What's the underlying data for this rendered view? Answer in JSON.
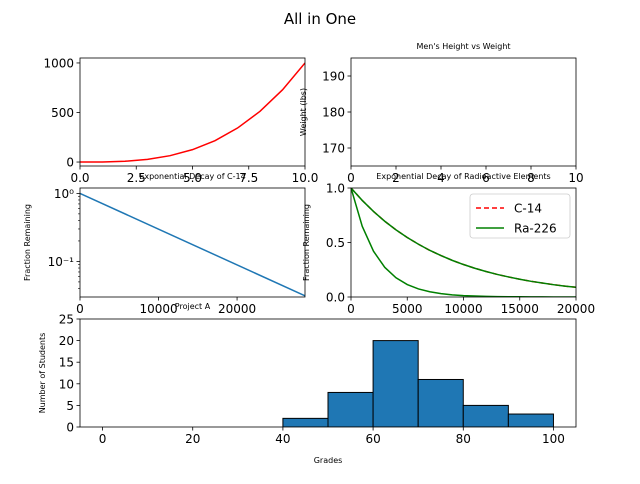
{
  "figure": {
    "title": "All in One"
  },
  "chart_data": [
    {
      "id": "cubic",
      "type": "line",
      "title": "",
      "xlabel": "",
      "ylabel": "",
      "xlim": [
        0,
        10
      ],
      "ylim": [
        -40,
        1050
      ],
      "xticks": [
        0.0,
        2.5,
        5.0,
        7.5,
        10.0
      ],
      "xtick_labels": [
        "0.0",
        "2.5",
        "5.0",
        "7.5",
        "10.0"
      ],
      "yticks": [
        0,
        500,
        1000
      ],
      "ytick_labels": [
        "0",
        "500",
        "1000"
      ],
      "color": "#ff0000",
      "x": [
        0,
        1,
        2,
        3,
        4,
        5,
        6,
        7,
        8,
        9,
        10
      ],
      "y": [
        0,
        1,
        8,
        27,
        64,
        125,
        216,
        343,
        512,
        729,
        1000
      ]
    },
    {
      "id": "height_weight",
      "type": "scatter",
      "title": "Men's Height vs Weight",
      "xlabel": "",
      "ylabel": "Weight (lbs)",
      "xlim": [
        0,
        10
      ],
      "ylim": [
        165,
        195
      ],
      "xticks": [
        0,
        2,
        4,
        6,
        8,
        10
      ],
      "xtick_labels": [
        "0",
        "2",
        "4",
        "6",
        "8",
        "10"
      ],
      "yticks": [
        170,
        180,
        190
      ],
      "ytick_labels": [
        "170",
        "180",
        "190"
      ],
      "points": []
    },
    {
      "id": "decay_c14",
      "type": "line",
      "title": "Exponential Decay of C-14",
      "xlabel": "Project A",
      "ylabel": "Fraction Remaining",
      "yscale": "log",
      "xlim": [
        0,
        28650
      ],
      "ylim": [
        0.03,
        1.2
      ],
      "xticks": [
        0,
        10000,
        20000
      ],
      "xtick_labels": [
        "0",
        "10000",
        "20000"
      ],
      "yticks": [
        0.1,
        1
      ],
      "ytick_labels": [
        "10⁻¹",
        "10⁰"
      ],
      "color": "#1f77b4",
      "x": [
        0,
        28650
      ],
      "y": [
        1.0,
        0.0312
      ]
    },
    {
      "id": "decay_radioactive",
      "type": "line",
      "title": "Exponential Decay of Radioactive Elements",
      "xlabel": "",
      "ylabel": "Fraction Remaining",
      "xlim": [
        0,
        20000
      ],
      "ylim": [
        0,
        1.0
      ],
      "xticks": [
        0,
        5000,
        10000,
        15000,
        20000
      ],
      "xtick_labels": [
        "0",
        "5000",
        "10000",
        "15000",
        "20000"
      ],
      "yticks": [
        0,
        0.5,
        1.0
      ],
      "ytick_labels": [
        "0.0",
        "0.5",
        "1.0"
      ],
      "legend_position": "top-right",
      "series": [
        {
          "name": "C-14",
          "color": "#ff0000",
          "dash": true,
          "x": [
            0,
            1000,
            2000,
            3000,
            4000,
            5000,
            6000,
            7000,
            8000,
            9000,
            10000,
            11000,
            12000,
            13000,
            14000,
            15000,
            16000,
            17000,
            18000,
            19000,
            20000
          ],
          "y": [
            1.0,
            0.886,
            0.785,
            0.695,
            0.616,
            0.546,
            0.484,
            0.428,
            0.38,
            0.336,
            0.298,
            0.264,
            0.234,
            0.207,
            0.184,
            0.163,
            0.144,
            0.128,
            0.113,
            0.1,
            0.089
          ]
        },
        {
          "name": "Ra-226",
          "color": "#008000",
          "dash": false,
          "x": [
            0,
            1000,
            2000,
            3000,
            4000,
            5000,
            6000,
            7000,
            8000,
            9000,
            10000,
            11000,
            12000,
            13000,
            14000,
            15000,
            16000,
            17000,
            18000,
            19000,
            20000
          ],
          "y": [
            1.0,
            0.886,
            0.785,
            0.695,
            0.616,
            0.546,
            0.484,
            0.428,
            0.38,
            0.336,
            0.298,
            0.264,
            0.234,
            0.207,
            0.184,
            0.163,
            0.144,
            0.128,
            0.113,
            0.1,
            0.089
          ]
        },
        {
          "name": "",
          "color": "#008000",
          "dash": false,
          "x": [
            0,
            1000,
            2000,
            3000,
            4000,
            5000,
            6000,
            7000,
            8000,
            9000,
            10000,
            11000,
            12000,
            13000,
            14000,
            15000,
            16000,
            17000,
            18000,
            19000,
            20000
          ],
          "y": [
            1.0,
            0.648,
            0.42,
            0.272,
            0.176,
            0.114,
            0.074,
            0.048,
            0.031,
            0.02,
            0.013,
            0.009,
            0.006,
            0.004,
            0.002,
            0.002,
            0.001,
            0.001,
            0.0,
            0.0,
            0.0
          ]
        }
      ]
    },
    {
      "id": "grades",
      "type": "bar",
      "title": "",
      "xlabel": "Grades",
      "ylabel": "Number of Students",
      "xlim": [
        -5,
        105
      ],
      "ylim": [
        0,
        25
      ],
      "xticks": [
        0,
        20,
        40,
        60,
        80,
        100
      ],
      "xtick_labels": [
        "0",
        "20",
        "40",
        "60",
        "80",
        "100"
      ],
      "yticks": [
        0,
        5,
        10,
        15,
        20,
        25
      ],
      "ytick_labels": [
        "0",
        "5",
        "10",
        "15",
        "20",
        "25"
      ],
      "color": "#1f77b4",
      "bins": [
        [
          0,
          10
        ],
        [
          10,
          20
        ],
        [
          20,
          30
        ],
        [
          30,
          40
        ],
        [
          40,
          50
        ],
        [
          50,
          60
        ],
        [
          60,
          70
        ],
        [
          70,
          80
        ],
        [
          80,
          90
        ],
        [
          90,
          100
        ]
      ],
      "values": [
        0,
        0,
        0,
        0,
        2,
        8,
        20,
        11,
        5,
        3
      ]
    }
  ]
}
